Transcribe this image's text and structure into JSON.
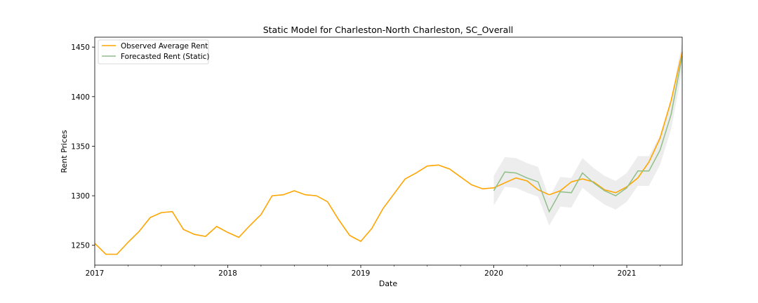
{
  "chart_data": {
    "type": "line",
    "title": "Static Model for Charleston-North Charleston, SC_Overall",
    "xlabel": "Date",
    "ylabel": "Rent Prices",
    "x_ticks": [
      "2017",
      "2018",
      "2019",
      "2020",
      "2021"
    ],
    "y_ticks": [
      "1250",
      "1300",
      "1350",
      "1400",
      "1450"
    ],
    "ylim": [
      1230,
      1460
    ],
    "xlim": [
      "2017-01",
      "2021-06"
    ],
    "grid": false,
    "legend_position": "upper-left",
    "series": [
      {
        "name": "Observed Average Rent",
        "color": "#ffa500",
        "x": [
          "2017-01",
          "2017-02",
          "2017-03",
          "2017-04",
          "2017-05",
          "2017-06",
          "2017-07",
          "2017-08",
          "2017-09",
          "2017-10",
          "2017-11",
          "2017-12",
          "2018-01",
          "2018-02",
          "2018-03",
          "2018-04",
          "2018-05",
          "2018-06",
          "2018-07",
          "2018-08",
          "2018-09",
          "2018-10",
          "2018-11",
          "2018-12",
          "2019-01",
          "2019-02",
          "2019-03",
          "2019-04",
          "2019-05",
          "2019-06",
          "2019-07",
          "2019-08",
          "2019-09",
          "2019-10",
          "2019-11",
          "2019-12",
          "2020-01",
          "2020-02",
          "2020-03",
          "2020-04",
          "2020-05",
          "2020-06",
          "2020-07",
          "2020-08",
          "2020-09",
          "2020-10",
          "2020-11",
          "2020-12",
          "2021-01",
          "2021-02",
          "2021-03",
          "2021-04",
          "2021-05",
          "2021-06"
        ],
        "y": [
          1252,
          1241,
          1241,
          1253,
          1264,
          1278,
          1283,
          1284,
          1266,
          1261,
          1259,
          1269,
          1263,
          1258,
          1270,
          1281,
          1300,
          1301,
          1305,
          1301,
          1300,
          1294,
          1276,
          1260,
          1254,
          1267,
          1287,
          1302,
          1317,
          1323,
          1330,
          1331,
          1327,
          1319,
          1311,
          1307,
          1308,
          1313,
          1318,
          1315,
          1306,
          1301,
          1305,
          1314,
          1317,
          1314,
          1306,
          1303,
          1309,
          1318,
          1334,
          1358,
          1396,
          1445
        ]
      },
      {
        "name": "Forecasted Rent (Static)",
        "color": "#8fbf88",
        "x": [
          "2020-01",
          "2020-02",
          "2020-03",
          "2020-04",
          "2020-05",
          "2020-06",
          "2020-07",
          "2020-08",
          "2020-09",
          "2020-10",
          "2020-11",
          "2020-12",
          "2021-01",
          "2021-02",
          "2021-03",
          "2021-04",
          "2021-05",
          "2021-06"
        ],
        "y": [
          1305,
          1324,
          1323,
          1318,
          1314,
          1284,
          1304,
          1303,
          1323,
          1313,
          1305,
          1300,
          1308,
          1325,
          1325,
          1346,
          1382,
          1441
        ],
        "lower": [
          1290,
          1309,
          1308,
          1303,
          1299,
          1270,
          1289,
          1288,
          1308,
          1299,
          1291,
          1286,
          1294,
          1310,
          1310,
          1331,
          1367,
          1426
        ],
        "upper": [
          1320,
          1339,
          1338,
          1333,
          1329,
          1298,
          1319,
          1318,
          1338,
          1328,
          1320,
          1315,
          1323,
          1340,
          1340,
          1361,
          1397,
          1456
        ],
        "band_color": "#d8d8d8"
      }
    ]
  }
}
